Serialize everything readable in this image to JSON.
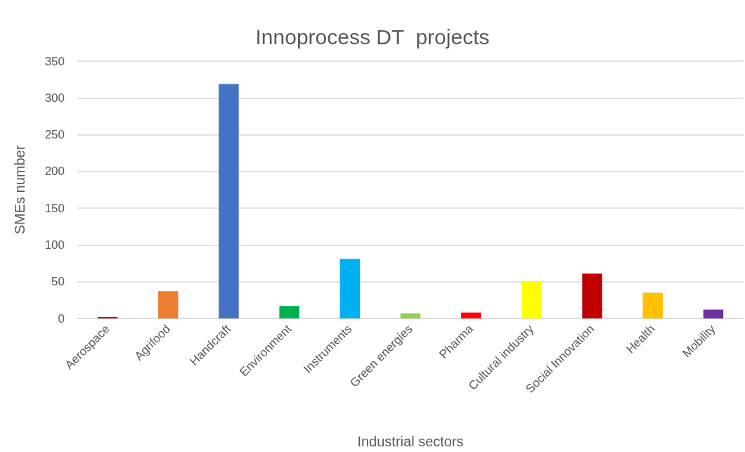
{
  "chart_data": {
    "type": "bar",
    "title": "Innoprocess DT  projects",
    "xlabel": "Industrial sectors",
    "ylabel": "SMEs number",
    "categories": [
      "Aerospace",
      "Agrifood",
      "Handcraft",
      "Environment",
      "Instruments",
      "Green energies",
      "Pharma",
      "Cultural industry",
      "Social Innovation",
      "Health",
      "Mobility"
    ],
    "values": [
      2,
      37,
      319,
      17,
      81,
      7,
      8,
      50,
      61,
      35,
      12
    ],
    "colors": [
      "#c00000",
      "#ed7d31",
      "#4472c4",
      "#00b050",
      "#00b0f0",
      "#92d050",
      "#ff0000",
      "#ffff00",
      "#c00000",
      "#ffc000",
      "#7030a0"
    ],
    "ylim": [
      0,
      350
    ],
    "yticks": [
      0,
      50,
      100,
      150,
      200,
      250,
      300,
      350
    ],
    "grid": "y"
  }
}
